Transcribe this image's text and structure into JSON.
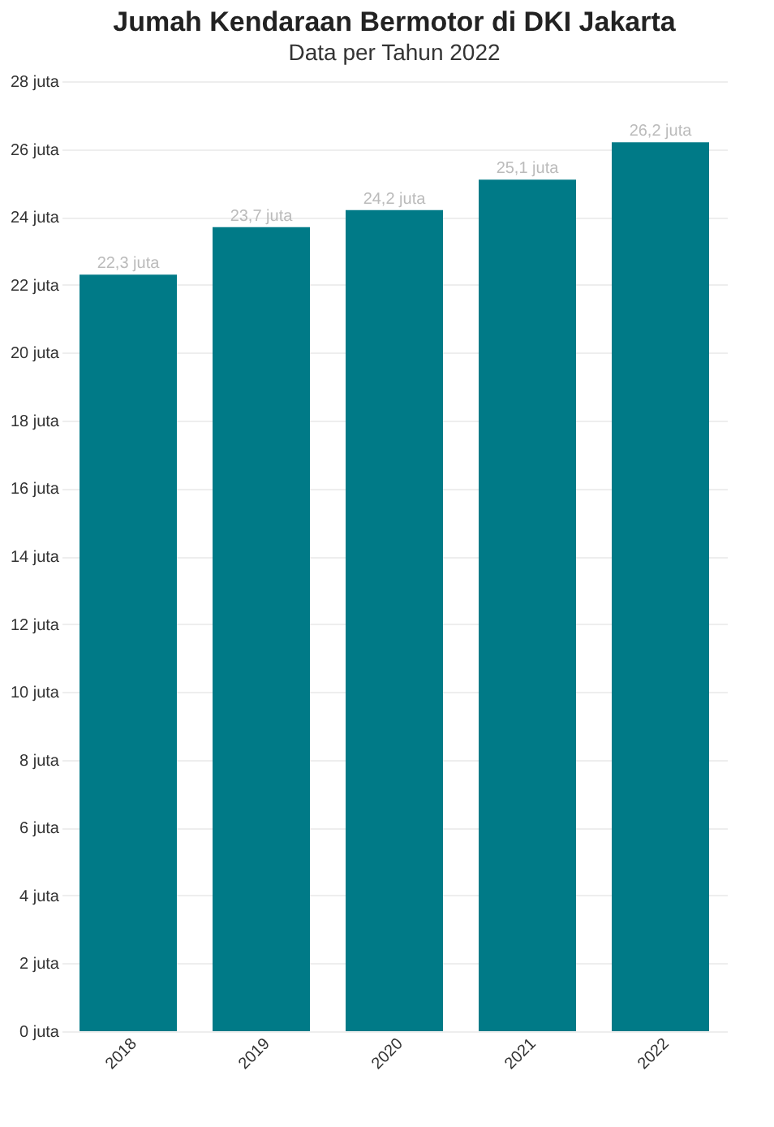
{
  "chart_data": {
    "type": "bar",
    "title": "Jumah Kendaraan Bermotor di DKI Jakarta",
    "subtitle": "Data per Tahun 2022",
    "categories": [
      "2018",
      "2019",
      "2020",
      "2021",
      "2022"
    ],
    "values": [
      22.3,
      23.7,
      24.2,
      25.1,
      26.2
    ],
    "value_labels": [
      "22,3 juta",
      "23,7 juta",
      "24,2 juta",
      "25,1 juta",
      "26,2 juta"
    ],
    "color": "#007a87",
    "ylim": [
      0,
      28
    ],
    "yticks": [
      {
        "value": 0,
        "label": "0 juta"
      },
      {
        "value": 2,
        "label": "2 juta"
      },
      {
        "value": 4,
        "label": "4 juta"
      },
      {
        "value": 6,
        "label": "6 juta"
      },
      {
        "value": 8,
        "label": "8 juta"
      },
      {
        "value": 10,
        "label": "10 juta"
      },
      {
        "value": 12,
        "label": "12 juta"
      },
      {
        "value": 14,
        "label": "14 juta"
      },
      {
        "value": 16,
        "label": "16 juta"
      },
      {
        "value": 18,
        "label": "18 juta"
      },
      {
        "value": 20,
        "label": "20 juta"
      },
      {
        "value": 22,
        "label": "22 juta"
      },
      {
        "value": 24,
        "label": "24 juta"
      },
      {
        "value": 26,
        "label": "26 juta"
      },
      {
        "value": 28,
        "label": "28 juta"
      }
    ],
    "grid": "y"
  }
}
